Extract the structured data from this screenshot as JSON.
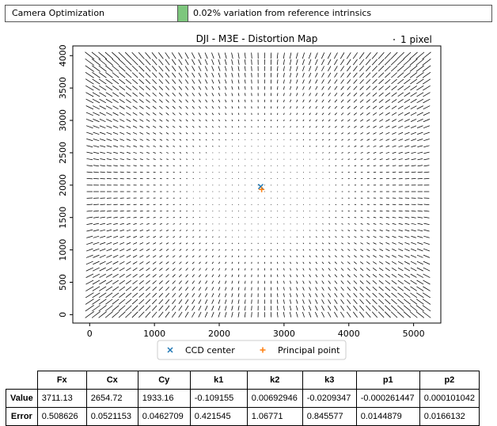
{
  "status": {
    "label": "Camera Optimization",
    "indicator_color": "#7dc67d",
    "message": "0.02% variation from reference intrinsics"
  },
  "chart_data": {
    "type": "scatter",
    "title": "DJI - M3E - Distortion Map",
    "scale_key_label": "1 pixel",
    "xlim": [
      -260,
      5420
    ],
    "ylim": [
      -130,
      4150
    ],
    "xticks": [
      0,
      1000,
      2000,
      3000,
      4000,
      5000
    ],
    "yticks": [
      0,
      500,
      1000,
      1500,
      2000,
      2500,
      3000,
      3500,
      4000
    ],
    "grid": false,
    "image_extent": {
      "width": 5280,
      "height": 3956
    },
    "vector_field": {
      "nx": 53,
      "ny": 41,
      "x_range": [
        0,
        5200
      ],
      "y_range": [
        0,
        4000
      ]
    },
    "series": [
      {
        "name": "CCD center",
        "marker": "x",
        "color": "#1f77b4",
        "points": [
          [
            2640,
            1978
          ]
        ]
      },
      {
        "name": "Principal point",
        "marker": "+",
        "color": "#ff7f0e",
        "points": [
          [
            2654.72,
            1933.16
          ]
        ]
      }
    ],
    "legend_position": "bottom-center"
  },
  "table": {
    "columns": [
      "Fx",
      "Cx",
      "Cy",
      "k1",
      "k2",
      "k3",
      "p1",
      "p2"
    ],
    "rows": [
      {
        "label": "Value",
        "cells": [
          "3711.13",
          "2654.72",
          "1933.16",
          "-0.109155",
          "0.00692946",
          "-0.0209347",
          "-0.000261447",
          "0.000101042"
        ]
      },
      {
        "label": "Error",
        "cells": [
          "0.508626",
          "0.0521153",
          "0.0462709",
          "0.421545",
          "1.06771",
          "0.845577",
          "0.0144879",
          "0.0166132"
        ]
      }
    ]
  }
}
